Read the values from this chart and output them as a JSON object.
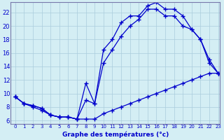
{
  "xlabel": "Graphe des températures (°c)",
  "background_color": "#d4eef4",
  "line_color": "#0000cc",
  "x_min": -0.5,
  "x_max": 23.2,
  "y_min": 5.5,
  "y_max": 23.5,
  "line1": {
    "x": [
      0,
      1,
      2,
      3,
      4,
      5,
      6,
      7,
      8,
      9,
      10,
      11,
      12,
      13,
      14,
      15,
      16,
      17,
      18,
      19,
      20,
      21,
      22,
      23
    ],
    "y": [
      9.5,
      8.5,
      8.2,
      7.8,
      6.8,
      6.5,
      6.5,
      6.2,
      11.5,
      8.5,
      16.5,
      18.0,
      20.5,
      21.5,
      21.5,
      23.0,
      23.5,
      22.5,
      22.5,
      21.5,
      19.5,
      18.0,
      15.0,
      13.0
    ]
  },
  "line2": {
    "x": [
      0,
      1,
      2,
      3,
      4,
      5,
      6,
      7,
      8,
      9,
      10,
      11,
      12,
      13,
      14,
      15,
      16,
      17,
      18,
      19,
      20,
      21,
      22,
      23
    ],
    "y": [
      9.5,
      8.5,
      8.2,
      7.8,
      6.8,
      6.5,
      6.5,
      6.2,
      9.0,
      8.5,
      14.5,
      16.5,
      18.5,
      20.0,
      21.0,
      22.5,
      22.5,
      21.5,
      21.5,
      20.0,
      19.5,
      18.0,
      14.5,
      13.0
    ]
  },
  "line3": {
    "x": [
      0,
      1,
      2,
      3,
      4,
      5,
      6,
      7,
      8,
      9,
      10,
      11,
      12,
      13,
      14,
      15,
      16,
      17,
      18,
      19,
      20,
      21,
      22,
      23
    ],
    "y": [
      9.5,
      8.5,
      8.0,
      7.5,
      6.8,
      6.5,
      6.5,
      6.2,
      6.2,
      6.2,
      7.0,
      7.5,
      8.0,
      8.5,
      9.0,
      9.5,
      10.0,
      10.5,
      11.0,
      11.5,
      12.0,
      12.5,
      13.0,
      13.0
    ]
  },
  "yticks": [
    6,
    8,
    10,
    12,
    14,
    16,
    18,
    20,
    22
  ],
  "xticks": [
    0,
    1,
    2,
    3,
    4,
    5,
    6,
    7,
    8,
    9,
    10,
    11,
    12,
    13,
    14,
    15,
    16,
    17,
    18,
    19,
    20,
    21,
    22,
    23
  ],
  "xlabel_fontsize": 6.5,
  "tick_fontsize_x": 5,
  "tick_fontsize_y": 6,
  "linewidth": 0.9,
  "markersize": 4
}
